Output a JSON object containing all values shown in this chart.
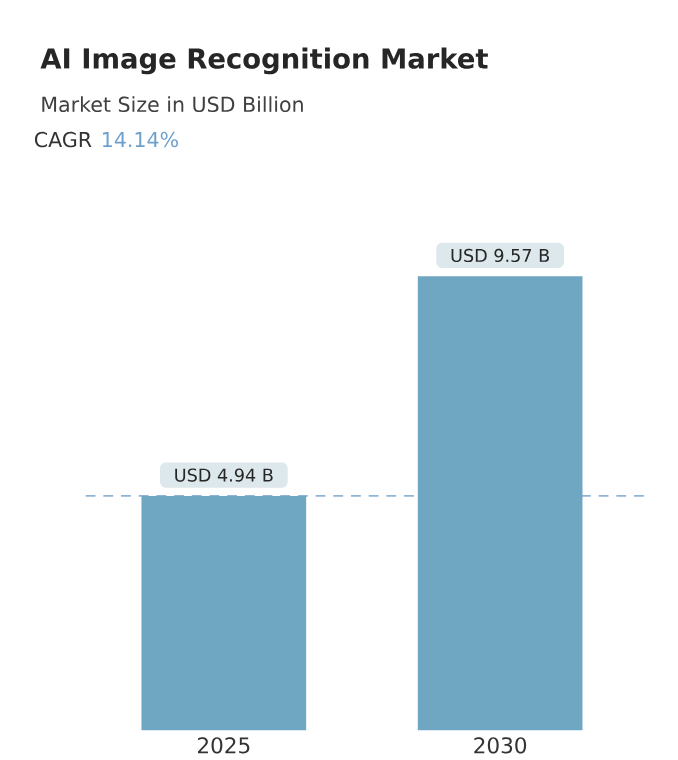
{
  "chart_data": {
    "type": "bar",
    "title": "AI Image Recognition Market",
    "subtitle": "Market Size in USD Billion",
    "annotations": [
      "CAGR",
      "14.14%"
    ],
    "categories": [
      "2025",
      "2030"
    ],
    "values": [
      4.94,
      9.57
    ],
    "color": "#6fa6c2",
    "value_labels": [
      "USD 4.94 B",
      "USD 9.57 B"
    ],
    "ref_lines": [
      {
        "axis": "y",
        "value": 4.94,
        "color": "#8fb4d6",
        "line_style": "dashed"
      }
    ]
  }
}
